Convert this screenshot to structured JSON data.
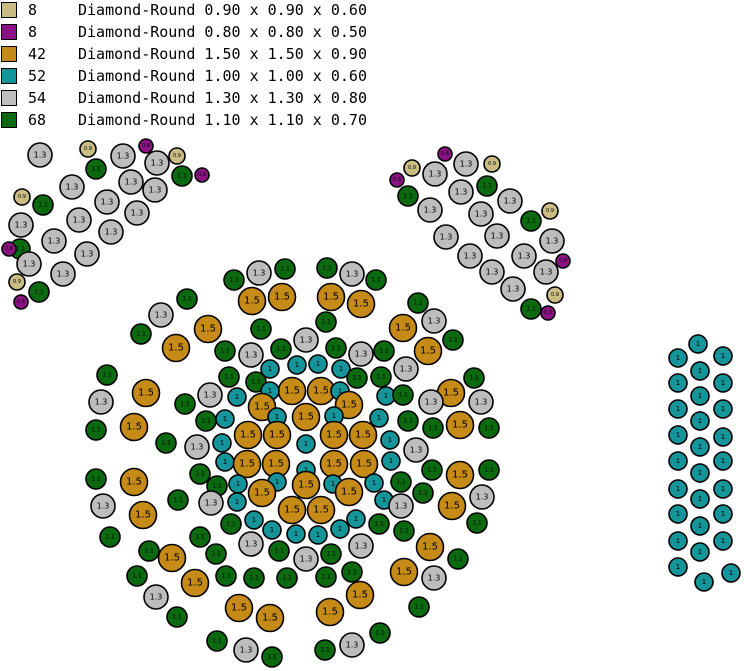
{
  "legend": [
    {
      "count": "8",
      "desc": "Diamond-Round 0.90 x 0.90 x 0.60",
      "color": "#c9bd83"
    },
    {
      "count": "8",
      "desc": "Diamond-Round 0.80 x 0.80 x 0.50",
      "color": "#8b1185"
    },
    {
      "count": "42",
      "desc": "Diamond-Round 1.50 x 1.50 x 0.90",
      "color": "#c68a17"
    },
    {
      "count": "52",
      "desc": "Diamond-Round 1.00 x 1.00 x 0.60",
      "color": "#14959a"
    },
    {
      "count": "54",
      "desc": "Diamond-Round 1.30 x 1.30 x 0.80",
      "color": "#bdbdbd"
    },
    {
      "count": "68",
      "desc": "Diamond-Round 1.10 x 1.10 x 0.70",
      "color": "#0b6a10"
    }
  ],
  "stone_types": {
    "gold": {
      "color": "#c68a17",
      "label": "1.5"
    },
    "gray": {
      "color": "#bdbdbd",
      "label": "1.3"
    },
    "green": {
      "color": "#0b6a10",
      "label": "1.1"
    },
    "teal": {
      "color": "#14959a",
      "label": "1"
    },
    "tan": {
      "color": "#c9bd83",
      "label": "0.9"
    },
    "purple": {
      "color": "#8b1185",
      "label": "0.8"
    }
  }
}
